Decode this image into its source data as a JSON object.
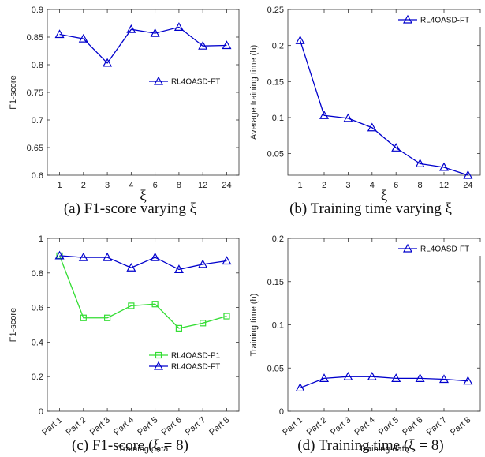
{
  "charts": [
    {
      "type": "line",
      "caption": "(a) F1-score varying ξ",
      "ylabel": "F1-score",
      "xlabel": "ξ",
      "ylim": [
        0.6,
        0.9
      ],
      "yticks": [
        0.6,
        0.65,
        0.7,
        0.75,
        0.8,
        0.85,
        0.9
      ],
      "categories": [
        "1",
        "2",
        "3",
        "4",
        "6",
        "8",
        "12",
        "24"
      ],
      "rotate_xticks": false,
      "legend_position": "right-middle",
      "series": [
        {
          "name": "RL4OASD-FT",
          "color": "#0000cc",
          "marker": "triangle",
          "values": [
            0.855,
            0.847,
            0.803,
            0.864,
            0.857,
            0.868,
            0.834,
            0.835
          ]
        }
      ]
    },
    {
      "type": "line",
      "caption": "(b) Training time varying ξ",
      "ylabel": "Average training time (h)",
      "xlabel": "ξ",
      "ylim": [
        0.02,
        0.25
      ],
      "yticks": [
        0.05,
        0.1,
        0.15,
        0.2,
        0.25
      ],
      "categories": [
        "1",
        "2",
        "3",
        "4",
        "6",
        "8",
        "12",
        "24"
      ],
      "rotate_xticks": false,
      "legend_position": "top-right",
      "series": [
        {
          "name": "RL4OASD-FT",
          "color": "#0000cc",
          "marker": "triangle",
          "values": [
            0.207,
            0.103,
            0.099,
            0.086,
            0.058,
            0.036,
            0.031,
            0.02
          ]
        }
      ]
    },
    {
      "type": "line",
      "caption": "(c) F1-score (ξ = 8)",
      "ylabel": "F1-score",
      "xlabel": "Training data",
      "ylim": [
        0,
        1
      ],
      "yticks": [
        0,
        0.2,
        0.4,
        0.6,
        0.8,
        1
      ],
      "categories": [
        "Part 1",
        "Part 2",
        "Part 3",
        "Part 4",
        "Part 5",
        "Part 6",
        "Part 7",
        "Part 8"
      ],
      "rotate_xticks": true,
      "legend_position": "bottom-right",
      "series": [
        {
          "name": "RL4OASD-P1",
          "color": "#33dd33",
          "marker": "square",
          "values": [
            0.9,
            0.54,
            0.54,
            0.61,
            0.62,
            0.48,
            0.51,
            0.55
          ]
        },
        {
          "name": "RL4OASD-FT",
          "color": "#0000cc",
          "marker": "triangle",
          "values": [
            0.9,
            0.89,
            0.89,
            0.83,
            0.89,
            0.82,
            0.85,
            0.87
          ]
        }
      ]
    },
    {
      "type": "line",
      "caption": "(d) Training time (ξ = 8)",
      "ylabel": "Training time (h)",
      "xlabel": "Training data",
      "ylim": [
        0,
        0.2
      ],
      "yticks": [
        0,
        0.05,
        0.1,
        0.15,
        0.2
      ],
      "categories": [
        "Part 1",
        "Part 2",
        "Part 3",
        "Part 4",
        "Part 5",
        "Part 6",
        "Part 7",
        "Part 8"
      ],
      "rotate_xticks": true,
      "legend_position": "top-right",
      "series": [
        {
          "name": "RL4OASD-FT",
          "color": "#0000cc",
          "marker": "triangle",
          "values": [
            0.027,
            0.038,
            0.04,
            0.04,
            0.038,
            0.038,
            0.037,
            0.035
          ]
        }
      ]
    }
  ]
}
